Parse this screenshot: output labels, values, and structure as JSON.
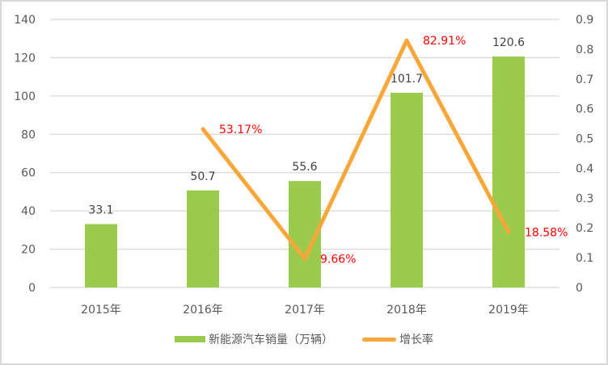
{
  "chart_data": {
    "type": "bar+line",
    "title": "",
    "categories": [
      "2015年",
      "2016年",
      "2017年",
      "2018年",
      "2019年"
    ],
    "series": [
      {
        "name": "新能源汽车销量（万辆）",
        "type": "bar",
        "axis": "left",
        "color": "#9bcb4c",
        "values": [
          33.1,
          50.7,
          55.6,
          101.7,
          120.6
        ],
        "labels": [
          "33.1",
          "50.7",
          "55.6",
          "101.7",
          "120.6"
        ]
      },
      {
        "name": "增长率",
        "type": "line",
        "axis": "right",
        "color": "#f9a73b",
        "values": [
          null,
          0.5317,
          0.0966,
          0.8291,
          0.1858
        ],
        "labels": [
          "",
          "53.17%",
          "9.66%",
          "82.91%",
          "18.58%"
        ]
      }
    ],
    "left_axis": {
      "ylim": [
        0,
        140
      ],
      "ticks": [
        "0",
        "20",
        "40",
        "60",
        "80",
        "100",
        "120",
        "140"
      ]
    },
    "right_axis": {
      "ylim": [
        0,
        0.9
      ],
      "ticks": [
        "0",
        "0.1",
        "0.2",
        "0.3",
        "0.4",
        "0.5",
        "0.6",
        "0.7",
        "0.8",
        "0.9"
      ]
    },
    "xlabel": "",
    "ylabel": "",
    "grid": true,
    "legend_position": "bottom",
    "label_colors": {
      "bar": "#404040",
      "line": "#ff0000"
    }
  },
  "legend": {
    "bar_label": "新能源汽车销量（万辆）",
    "line_label": "增长率"
  }
}
